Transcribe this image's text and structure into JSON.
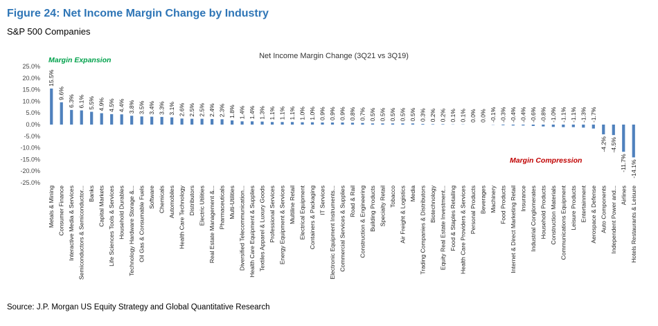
{
  "header": {
    "title": "Figure 24: Net Income Margin Change by Industry",
    "subtitle": "S&P 500 Companies"
  },
  "footer": {
    "source": "Source: J.P. Morgan US Equity Strategy and Global Quantitative Research"
  },
  "colors": {
    "title": "#2e75b6",
    "bar": "#4f81bd",
    "expansion": "#00a14b",
    "compression": "#c00000"
  },
  "chart_data": {
    "type": "bar",
    "title": "Net Income Margin Change (3Q21 vs 3Q19)",
    "xlabel": "",
    "ylabel": "",
    "ylim": [
      -25,
      25
    ],
    "yticks": [
      25,
      20,
      15,
      10,
      5,
      0,
      -5,
      -10,
      -15,
      -20,
      -25
    ],
    "ytick_labels": [
      "25.0%",
      "20.0%",
      "15.0%",
      "10.0%",
      "5.0%",
      "0.0%",
      "-5.0%",
      "-10.0%",
      "-15.0%",
      "-20.0%",
      "-25.0%"
    ],
    "grid": false,
    "annotations": [
      {
        "text": "Margin Expansion",
        "color": "#00a14b"
      },
      {
        "text": "Margin Compression",
        "color": "#c00000"
      }
    ],
    "categories": [
      "Metals & Mining",
      "Consumer Finance",
      "Interactive Media & Services",
      "Semiconductors & Semiconductor...",
      "Banks",
      "Capital Markets",
      "Life Sciences Tools & Services",
      "Household Durables",
      "Technology Hardware Storage &...",
      "Oil Gas & Consumable Fuels",
      "Software",
      "Chemicals",
      "Automobiles",
      "Health Care Technology",
      "Distributors",
      "Electric Utilities",
      "Real Estate Management &...",
      "Pharmaceuticals",
      "Multi-Utilities",
      "Diversified Telecommunication...",
      "Health Care Equipment & Supplies",
      "Textiles Apparel & Luxury Goods",
      "Professional Services",
      "Energy Equipment & Services",
      "Multiline Retail",
      "Electrical Equipment",
      "Containers & Packaging",
      "IT Services",
      "Electronic Equipment Instruments...",
      "Commercial Services & Supplies",
      "Road & Rail",
      "Construction & Engineering",
      "Building Products",
      "Specialty Retail",
      "Tobacco",
      "Air Freight & Logistics",
      "Media",
      "Trading Companies & Distributors",
      "Biotechnology",
      "Equity Real Estate Investment...",
      "Food & Staples Retailing",
      "Health Care Providers & Services",
      "Personal Products",
      "Beverages",
      "Machinery",
      "Food Products",
      "Internet & Direct Marketing Retail",
      "Insurance",
      "Industrial Conglomerates",
      "Household Products",
      "Construction Materials",
      "Communications Equipment",
      "Leisure Products",
      "Entertainment",
      "Aerospace & Defense",
      "Auto Components",
      "Independent Power and...",
      "Airlines",
      "Hotels Restaurants & Leisure"
    ],
    "values": [
      15.5,
      9.6,
      6.3,
      6.1,
      5.5,
      4.9,
      4.5,
      4.4,
      3.8,
      3.5,
      3.4,
      3.3,
      3.1,
      2.6,
      2.5,
      2.5,
      2.4,
      2.3,
      1.8,
      1.4,
      1.4,
      1.3,
      1.1,
      1.1,
      1.1,
      1.0,
      1.0,
      0.9,
      0.9,
      0.9,
      0.8,
      0.7,
      0.5,
      0.5,
      0.5,
      0.5,
      0.5,
      0.3,
      0.2,
      0.2,
      0.1,
      0.1,
      0.0,
      0.0,
      -0.1,
      -0.3,
      -0.4,
      -0.4,
      -0.6,
      -0.8,
      -1.0,
      -1.1,
      -1.1,
      -1.3,
      -1.7,
      -4.2,
      -4.5,
      -11.7,
      -14.1
    ],
    "value_labels": [
      "15.5%",
      "9.6%",
      "6.3%",
      "6.1%",
      "5.5%",
      "4.9%",
      "4.5%",
      "4.4%",
      "3.8%",
      "3.5%",
      "3.4%",
      "3.3%",
      "3.1%",
      "2.6%",
      "2.5%",
      "2.5%",
      "2.4%",
      "2.3%",
      "1.8%",
      "1.4%",
      "1.4%",
      "1.3%",
      "1.1%",
      "1.1%",
      "1.1%",
      "1.0%",
      "1.0%",
      "0.9%",
      "0.9%",
      "0.9%",
      "0.8%",
      "0.7%",
      "0.5%",
      "0.5%",
      "0.5%",
      "0.5%",
      "0.5%",
      "0.3%",
      "0.2%",
      "0.2%",
      "0.1%",
      "0.1%",
      "0.0%",
      "0.0%",
      "-0.1%",
      "-0.3%",
      "-0.4%",
      "-0.4%",
      "-0.6%",
      "-0.8%",
      "-1.0%",
      "-1.1%",
      "-1.1%",
      "-1.3%",
      "-1.7%",
      "-4.2%",
      "-4.5%",
      "-11.7%",
      "-14.1%"
    ]
  }
}
